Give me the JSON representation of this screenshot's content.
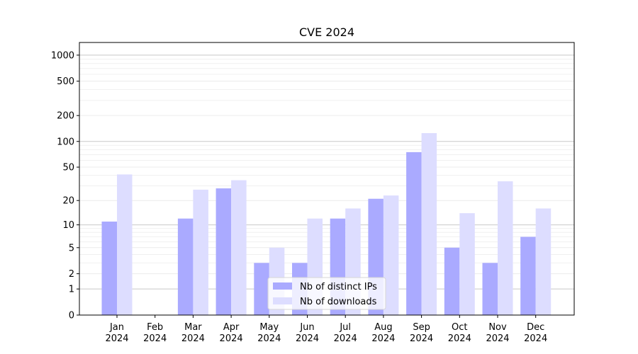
{
  "chart_data": {
    "type": "bar",
    "title": "CVE 2024",
    "xlabel": "",
    "ylabel": "",
    "yscale": "symlog",
    "ylim": [
      0,
      1400
    ],
    "y_ticks": [
      0,
      1,
      2,
      5,
      10,
      20,
      50,
      100,
      200,
      500,
      1000
    ],
    "grid": true,
    "legend_position": "bottom-center",
    "categories": [
      [
        "Jan",
        "2024"
      ],
      [
        "Feb",
        "2024"
      ],
      [
        "Mar",
        "2024"
      ],
      [
        "Apr",
        "2024"
      ],
      [
        "May",
        "2024"
      ],
      [
        "Jun",
        "2024"
      ],
      [
        "Jul",
        "2024"
      ],
      [
        "Aug",
        "2024"
      ],
      [
        "Sep",
        "2024"
      ],
      [
        "Oct",
        "2024"
      ],
      [
        "Nov",
        "2024"
      ],
      [
        "Dec",
        "2024"
      ]
    ],
    "series": [
      {
        "name": "Nb of distinct IPs",
        "color": "#aaaaff",
        "values": [
          11,
          0,
          12,
          28,
          3,
          3,
          12,
          21,
          75,
          5,
          3,
          7
        ]
      },
      {
        "name": "Nb of downloads",
        "color": "#ddddff",
        "values": [
          41,
          0,
          27,
          35,
          5,
          12,
          16,
          23,
          125,
          14,
          34,
          16
        ]
      }
    ]
  }
}
